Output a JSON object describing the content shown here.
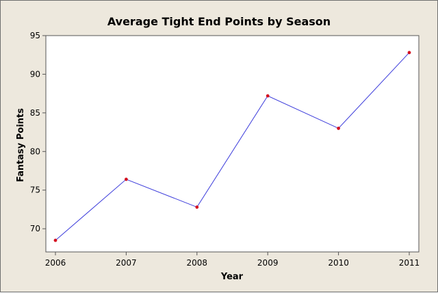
{
  "chart_data": {
    "type": "line",
    "title": "Average Tight End Points by Season",
    "xlabel": "Year",
    "ylabel": "Fantasy Points",
    "x": [
      "2006",
      "2007",
      "2008",
      "2009",
      "2010",
      "2011"
    ],
    "series": [
      {
        "values": [
          68.5,
          76.4,
          72.8,
          87.2,
          83.0,
          92.8
        ]
      }
    ],
    "yticks": [
      "70",
      "75",
      "80",
      "85",
      "90",
      "95"
    ],
    "ylim": [
      67.0,
      95.0
    ],
    "grid": false,
    "line_color": "#3b3bdb",
    "marker_color": "#d41020",
    "panel_color": "#ede8dd",
    "plot_area_color": "#ffffff"
  }
}
